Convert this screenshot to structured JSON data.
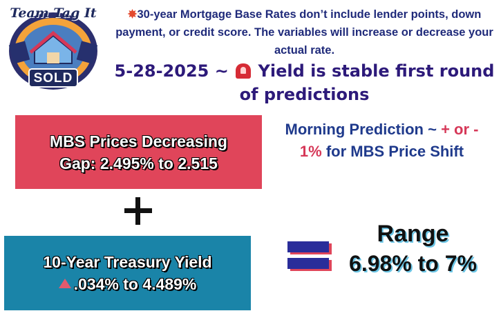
{
  "logo": {
    "top_text": "Team Tag It",
    "bottom_text": "SOLD"
  },
  "disclaimer": {
    "icon": "collision-burst-icon",
    "text": "30-year Mortgage Base Rates don’t include lender points, down payment, or credit score. The variables will increase or decrease your actual rate."
  },
  "headline": {
    "date": "5-28-2025 ~",
    "icon": "siren-icon",
    "text": "Yield is stable first round of predictions"
  },
  "mbs_box": {
    "line1": "MBS Prices Decreasing",
    "line2": "Gap: 2.495% to 2.515",
    "color": "#e0455a"
  },
  "morning": {
    "part1": "Morning Prediction ~",
    "pm": "+ or -",
    "pct": "1%",
    "part2": "for MBS Price Shift"
  },
  "operator_plus": "plus-icon",
  "treasury_box": {
    "line1": "10-Year Treasury Yield",
    "line2": ".034% to 4.489%",
    "icon": "up-triangle-icon",
    "color": "#1a84a8"
  },
  "operator_equals": "equals-icon",
  "range": {
    "title": "Range",
    "value": "6.98% to 7%"
  }
}
